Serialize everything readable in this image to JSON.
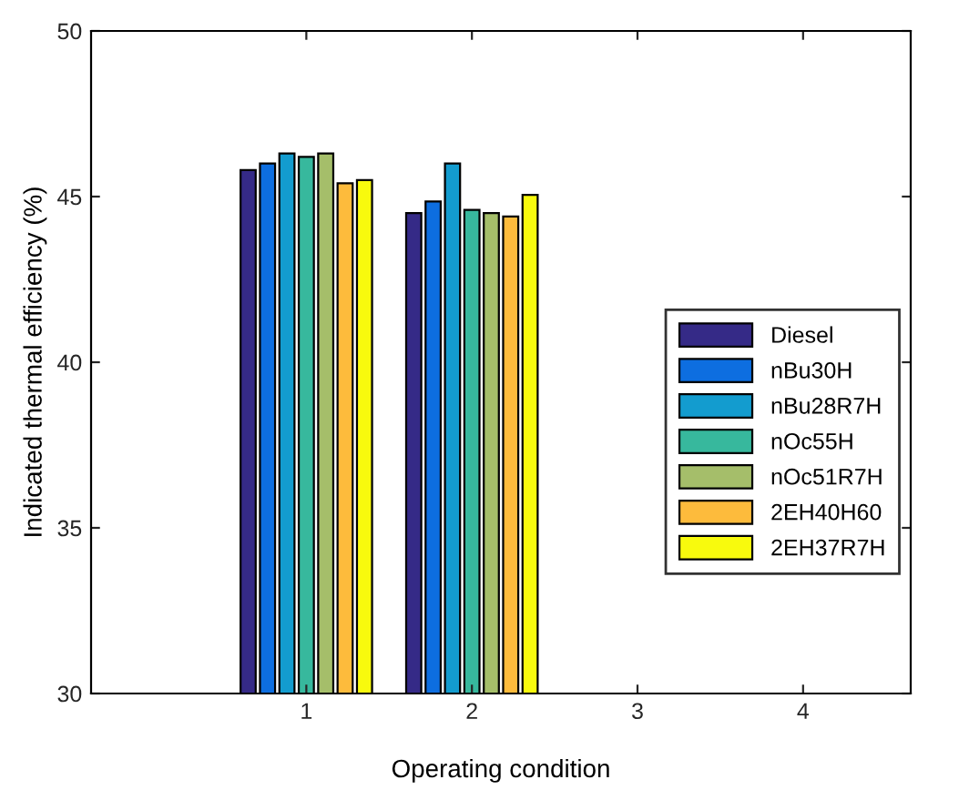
{
  "chart_data": {
    "type": "bar",
    "xlabel": "Operating condition",
    "ylabel": "Indicated thermal efficiency (%)",
    "categories": [
      "1",
      "2",
      "3",
      "4"
    ],
    "series": [
      {
        "name": "Diesel",
        "color": "#352a87",
        "values": [
          45.8,
          44.5,
          null,
          null
        ]
      },
      {
        "name": "nBu30H",
        "color": "#0d6ee0",
        "values": [
          46.0,
          44.85,
          null,
          null
        ]
      },
      {
        "name": "nBu28R7H",
        "color": "#139ccf",
        "values": [
          46.3,
          46.0,
          null,
          null
        ]
      },
      {
        "name": "nOc55H",
        "color": "#37b89d",
        "values": [
          46.2,
          44.6,
          null,
          null
        ]
      },
      {
        "name": "nOc51R7H",
        "color": "#a5be6a",
        "values": [
          46.3,
          44.5,
          null,
          null
        ]
      },
      {
        "name": "2EH40H60",
        "color": "#fdbb3c",
        "values": [
          45.4,
          44.4,
          null,
          null
        ]
      },
      {
        "name": "2EH37R7H",
        "color": "#f8fa0d",
        "values": [
          45.5,
          45.05,
          null,
          null
        ]
      }
    ],
    "ylim": [
      30,
      50
    ],
    "yticks": [
      30,
      35,
      40,
      45,
      50
    ],
    "legend": "right",
    "grid": false
  }
}
